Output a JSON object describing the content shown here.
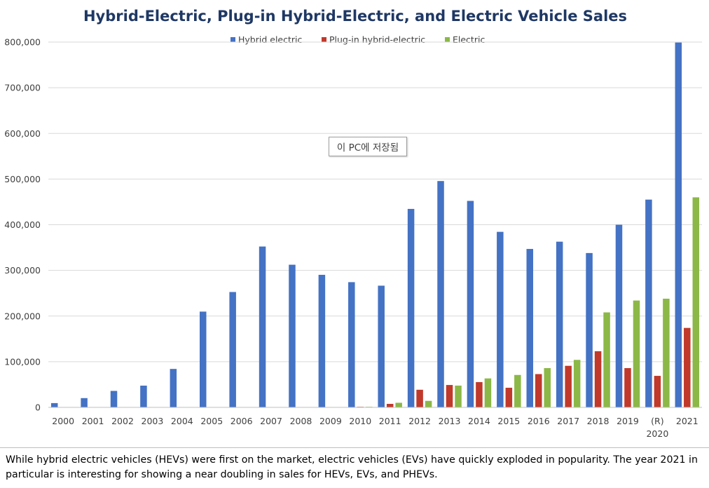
{
  "chart_data": {
    "type": "bar",
    "title": "Hybrid-Electric, Plug-in Hybrid-Electric, and Electric Vehicle Sales",
    "xlabel": "",
    "ylabel": "",
    "ylim": [
      0,
      800000
    ],
    "yticks": [
      0,
      100000,
      200000,
      300000,
      400000,
      500000,
      600000,
      700000,
      800000
    ],
    "ytick_labels": [
      "0",
      "100,000",
      "200,000",
      "300,000",
      "400,000",
      "500,000",
      "600,000",
      "700,000",
      "800,000"
    ],
    "grid": true,
    "legend_position": "top-center",
    "categories": [
      "2000",
      "2001",
      "2002",
      "2003",
      "2004",
      "2005",
      "2006",
      "2007",
      "2008",
      "2009",
      "2010",
      "2011",
      "2012",
      "2013",
      "2014",
      "2015",
      "2016",
      "2017",
      "2018",
      "2019",
      "(R) 2020",
      "2021"
    ],
    "series": [
      {
        "name": "Hybrid electric",
        "color": "#4472C4",
        "values": [
          9350,
          20282,
          36035,
          47600,
          84199,
          209711,
          252636,
          352274,
          312386,
          290271,
          274210,
          266501,
          434645,
          495685,
          452172,
          384400,
          346949,
          362868,
          338000,
          400000,
          455000,
          799000
        ]
      },
      {
        "name": "Plug-in hybrid-electric",
        "color": "#C0392B",
        "values": [
          0,
          0,
          0,
          0,
          0,
          0,
          0,
          0,
          0,
          0,
          326,
          7671,
          38584,
          49008,
          55357,
          42959,
          72885,
          91000,
          123000,
          86000,
          69000,
          174000
        ]
      },
      {
        "name": "Electric",
        "color": "#8CB847",
        "values": [
          0,
          0,
          0,
          0,
          0,
          0,
          0,
          0,
          0,
          0,
          19,
          10064,
          14251,
          47694,
          63416,
          71000,
          86000,
          104000,
          208000,
          234000,
          238000,
          460000
        ]
      }
    ]
  },
  "tooltip": {
    "text": "이 PC에 저장됨"
  },
  "caption": {
    "text": "While hybrid electric vehicles (HEVs) were first on the market, electric vehicles (EVs) have quickly exploded in popularity. The year 2021 in particular is interesting for showing a near doubling in sales for HEVs, EVs, and PHEVs."
  }
}
